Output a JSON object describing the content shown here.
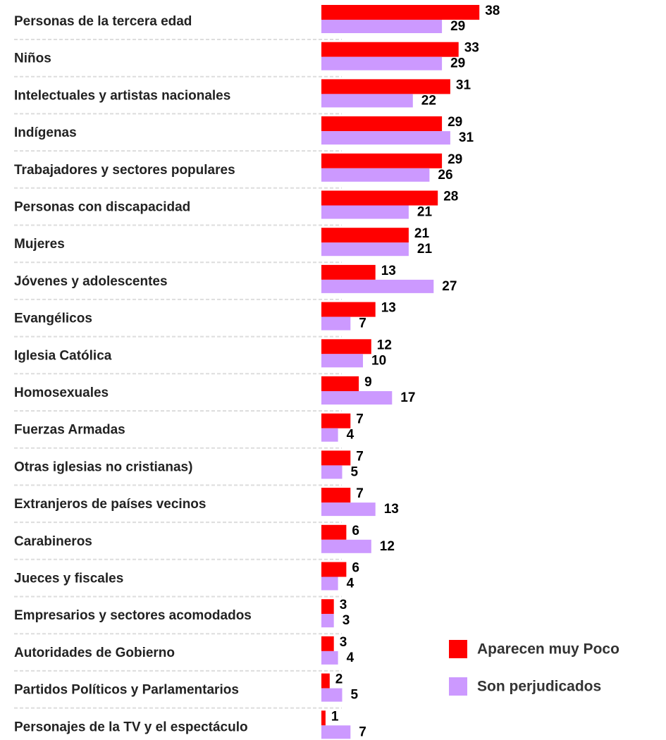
{
  "chart_data": {
    "type": "hbar",
    "categories": [
      "Personas de la tercera edad",
      "Niños",
      "Intelectuales y artistas nacionales",
      "Indígenas",
      "Trabajadores y sectores populares",
      "Personas con discapacidad",
      "Mujeres",
      "Jóvenes y adolescentes",
      "Evangélicos",
      "Iglesia Católica",
      "Homosexuales",
      "Fuerzas Armadas",
      "Otras iglesias no cristianas)",
      "Extranjeros de países vecinos",
      "Carabineros",
      "Jueces y fiscales",
      "Empresarios y sectores acomodados",
      "Autoridades de Gobierno",
      "Partidos Políticos y Parlamentarios",
      "Personajes de la TV y el espectáculo"
    ],
    "series": [
      {
        "name": "Aparecen muy Poco",
        "color": "#ff0000",
        "values": [
          38,
          33,
          31,
          29,
          29,
          28,
          21,
          13,
          13,
          12,
          9,
          7,
          7,
          7,
          6,
          6,
          3,
          3,
          2,
          1
        ]
      },
      {
        "name": "Son perjudicados",
        "color": "#cc99ff",
        "values": [
          29,
          29,
          22,
          31,
          26,
          21,
          21,
          27,
          7,
          10,
          17,
          4,
          5,
          13,
          12,
          4,
          3,
          4,
          5,
          7
        ]
      }
    ],
    "legend": "lower right"
  }
}
